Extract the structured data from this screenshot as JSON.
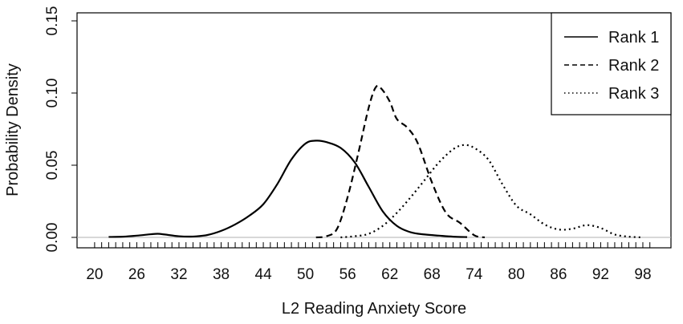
{
  "chart_data": {
    "type": "line",
    "title": "",
    "xlabel": "L2 Reading Anxiety Score",
    "ylabel": "Probability Density",
    "xlim": [
      17.5,
      102
    ],
    "ylim": [
      0.0,
      0.15
    ],
    "x_ticks": [
      20,
      26,
      32,
      38,
      44,
      50,
      56,
      62,
      68,
      74,
      80,
      86,
      92,
      98
    ],
    "x_tick_labels": [
      "20",
      "26",
      "32",
      "38",
      "44",
      "50",
      "56",
      "62",
      "68",
      "74",
      "80",
      "86",
      "92",
      "98"
    ],
    "y_ticks": [
      0.0,
      0.05,
      0.1,
      0.15
    ],
    "y_tick_labels": [
      "0.00",
      "0.05",
      "0.10",
      "0.15"
    ],
    "minor_x_ticks": {
      "from": 20,
      "to": 99,
      "step": 1
    },
    "baseline": 0,
    "grid": false,
    "legend_position": "top-right",
    "series": [
      {
        "name": "Rank 1",
        "style": "solid",
        "x": [
          22,
          24,
          26,
          28,
          29,
          30,
          32,
          34,
          36,
          38,
          40,
          42,
          44,
          46,
          48,
          50,
          51.5,
          53,
          55,
          57,
          59,
          61,
          63,
          65,
          67,
          69,
          71,
          73
        ],
        "y": [
          0.0003,
          0.0005,
          0.0012,
          0.0022,
          0.0025,
          0.002,
          0.0008,
          0.0006,
          0.0016,
          0.0045,
          0.009,
          0.015,
          0.023,
          0.037,
          0.054,
          0.065,
          0.067,
          0.066,
          0.062,
          0.052,
          0.035,
          0.018,
          0.008,
          0.0035,
          0.002,
          0.0012,
          0.0005,
          0.0002
        ]
      },
      {
        "name": "Rank 2",
        "style": "dashed",
        "x": [
          51.5,
          53,
          54.5,
          56,
          57.5,
          59,
          60,
          60.8,
          62,
          63,
          64.5,
          66,
          68,
          70,
          72,
          74,
          75.5
        ],
        "y": [
          0.0,
          0.0008,
          0.006,
          0.028,
          0.058,
          0.09,
          0.104,
          0.103,
          0.094,
          0.082,
          0.076,
          0.065,
          0.038,
          0.017,
          0.01,
          0.0015,
          0.0
        ]
      },
      {
        "name": "Rank 3",
        "style": "dotted",
        "x": [
          55,
          57,
          59,
          61,
          63,
          65,
          67,
          69,
          71,
          72.5,
          74,
          76,
          78,
          80,
          82,
          84,
          86,
          88,
          90,
          92,
          94,
          96,
          98
        ],
        "y": [
          0.0,
          0.0008,
          0.0025,
          0.008,
          0.017,
          0.028,
          0.04,
          0.052,
          0.061,
          0.064,
          0.062,
          0.054,
          0.037,
          0.022,
          0.016,
          0.009,
          0.0055,
          0.006,
          0.0085,
          0.0065,
          0.002,
          0.0005,
          0.0
        ]
      }
    ]
  }
}
